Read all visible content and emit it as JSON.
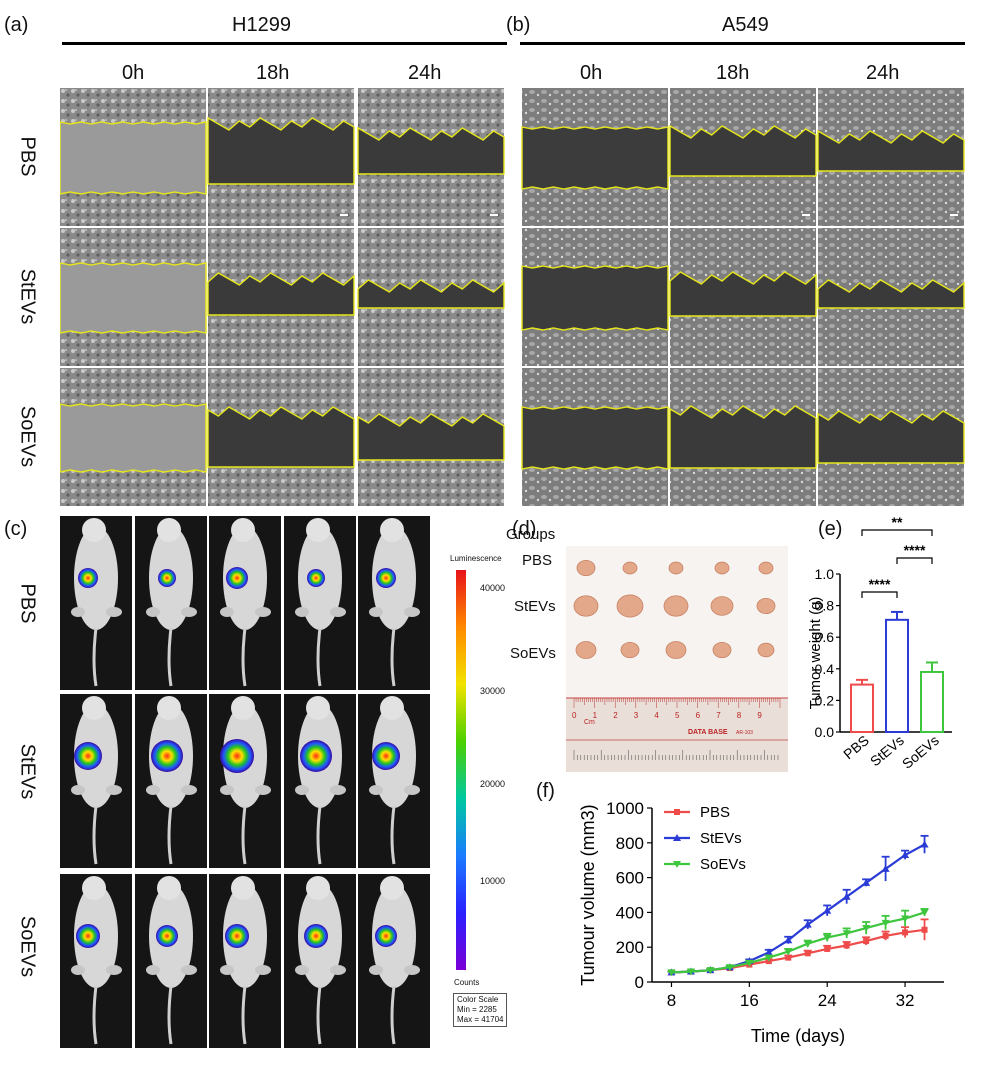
{
  "panel_a": {
    "label": "(a)",
    "cell_line": "H1299",
    "times": [
      "0h",
      "18h",
      "24h"
    ],
    "groups": [
      "PBS",
      "StEVs",
      "SoEVs"
    ]
  },
  "panel_b": {
    "label": "(b)",
    "cell_line": "A549",
    "times": [
      "0h",
      "18h",
      "24h"
    ]
  },
  "panel_c": {
    "label": "(c)",
    "groups": [
      "PBS",
      "StEVs",
      "SoEVs"
    ],
    "scale_title": "Luminescence",
    "scale_ticks": [
      "40000",
      "30000",
      "20000",
      "10000"
    ],
    "counts_label": "Counts",
    "scale_box": [
      "Color Scale",
      "Min = 2285",
      "Max = 41704"
    ]
  },
  "panel_d": {
    "label": "(d)",
    "groups_title": "Groups",
    "groups": [
      "PBS",
      "StEVs",
      "SoEVs"
    ],
    "ruler_unit": "Cm",
    "ruler_numbers": [
      "0",
      "1",
      "2",
      "3",
      "4",
      "5",
      "6",
      "7",
      "8",
      "9"
    ],
    "ruler_brand": "DATA BASE",
    "ruler_model": "AR-103"
  },
  "panel_e": {
    "label": "(e)",
    "significance": [
      "**",
      "****",
      "****"
    ]
  },
  "panel_f": {
    "label": "(f)"
  },
  "chart_data": [
    {
      "type": "bar",
      "panel": "e",
      "ylabel": "Tumor weight (g)",
      "xlabel": "",
      "categories": [
        "PBS",
        "StEVs",
        "SoEVs"
      ],
      "values": [
        0.3,
        0.71,
        0.38
      ],
      "errors": [
        0.03,
        0.05,
        0.06
      ],
      "colors": [
        "#ef4b4b",
        "#2a3bd6",
        "#3fc63f"
      ],
      "ylim": [
        0,
        1.0
      ],
      "yticks": [
        "0.0",
        "0.2",
        "0.4",
        "0.6",
        "0.8",
        "1.0"
      ]
    },
    {
      "type": "line",
      "panel": "f",
      "xlabel": "Time (days)",
      "ylabel": "Tumour volume (mm3)",
      "x": [
        8,
        10,
        12,
        14,
        16,
        18,
        20,
        22,
        24,
        26,
        28,
        30,
        32,
        34
      ],
      "xlim": [
        6,
        36
      ],
      "ylim": [
        0,
        1000
      ],
      "xticks": [
        "8",
        "16",
        "24",
        "32"
      ],
      "yticks": [
        "0",
        "200",
        "400",
        "600",
        "800",
        "1000"
      ],
      "series": [
        {
          "name": "PBS",
          "color": "#ef4b4b",
          "marker": "square",
          "values": [
            55,
            60,
            68,
            80,
            100,
            120,
            140,
            165,
            190,
            210,
            235,
            265,
            285,
            300
          ],
          "errors": [
            5,
            5,
            6,
            6,
            8,
            10,
            12,
            15,
            18,
            20,
            22,
            25,
            30,
            60
          ]
        },
        {
          "name": "StEVs",
          "color": "#2a3bd6",
          "marker": "triangle",
          "values": [
            55,
            60,
            68,
            85,
            120,
            170,
            240,
            330,
            410,
            490,
            570,
            650,
            730,
            790
          ],
          "errors": [
            5,
            5,
            6,
            8,
            10,
            15,
            20,
            25,
            30,
            40,
            20,
            70,
            25,
            50
          ]
        },
        {
          "name": "SoEVs",
          "color": "#3fc63f",
          "marker": "inverted-triangle",
          "values": [
            55,
            60,
            68,
            85,
            110,
            140,
            175,
            220,
            255,
            280,
            310,
            340,
            365,
            400
          ],
          "errors": [
            5,
            5,
            6,
            8,
            10,
            12,
            15,
            18,
            22,
            28,
            35,
            40,
            45,
            20
          ]
        }
      ]
    }
  ]
}
